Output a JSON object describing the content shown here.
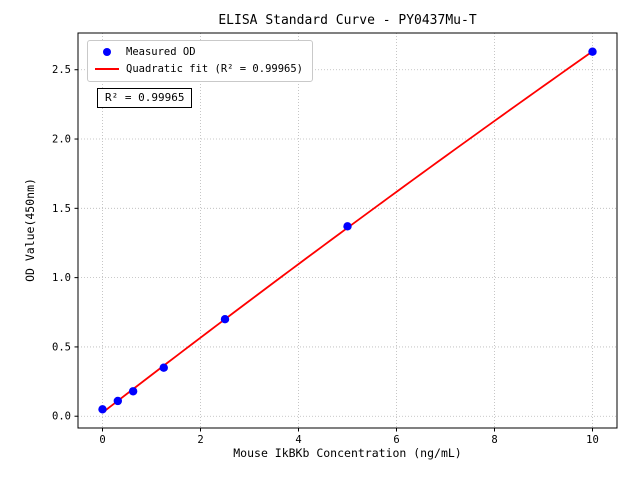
{
  "chart_data": {
    "type": "scatter",
    "title": "ELISA Standard Curve - PY0437Mu-T",
    "xlabel": "Mouse IkBKb Concentration (ng/mL)",
    "ylabel": "OD Value(450nm)",
    "points": {
      "x": [
        0,
        0.3125,
        0.625,
        1.25,
        2.5,
        5,
        10
      ],
      "y": [
        0.05,
        0.11,
        0.18,
        0.35,
        0.7,
        1.37,
        2.63
      ]
    },
    "fit": {
      "type": "quadratic",
      "r_squared": 0.99965
    },
    "legend": [
      {
        "label": "Measured OD",
        "marker": "dot",
        "color": "#0000ff"
      },
      {
        "label": "Quadratic fit (R² = 0.99965)",
        "marker": "line",
        "color": "#ff0000"
      }
    ],
    "annotation": "R² = 0.99965",
    "xticks": [
      0,
      2,
      4,
      6,
      8,
      10
    ],
    "xtick_labels": [
      "0",
      "2",
      "4",
      "6",
      "8",
      "10"
    ],
    "yticks": [
      0,
      0.5,
      1,
      1.5,
      2,
      2.5
    ],
    "ytick_labels": [
      "0.0",
      "0.5",
      "1.0",
      "1.5",
      "2.0",
      "2.5"
    ],
    "xlim": [
      -0.5,
      10.5
    ],
    "ylim": [
      -0.085,
      2.765
    ],
    "grid": true,
    "legend_position": "upper left",
    "colors": {
      "scatter": "#0000ff",
      "fit_line": "#ff0000",
      "grid": "#b8b8b8",
      "frame": "#000000",
      "background": "#ffffff"
    }
  }
}
